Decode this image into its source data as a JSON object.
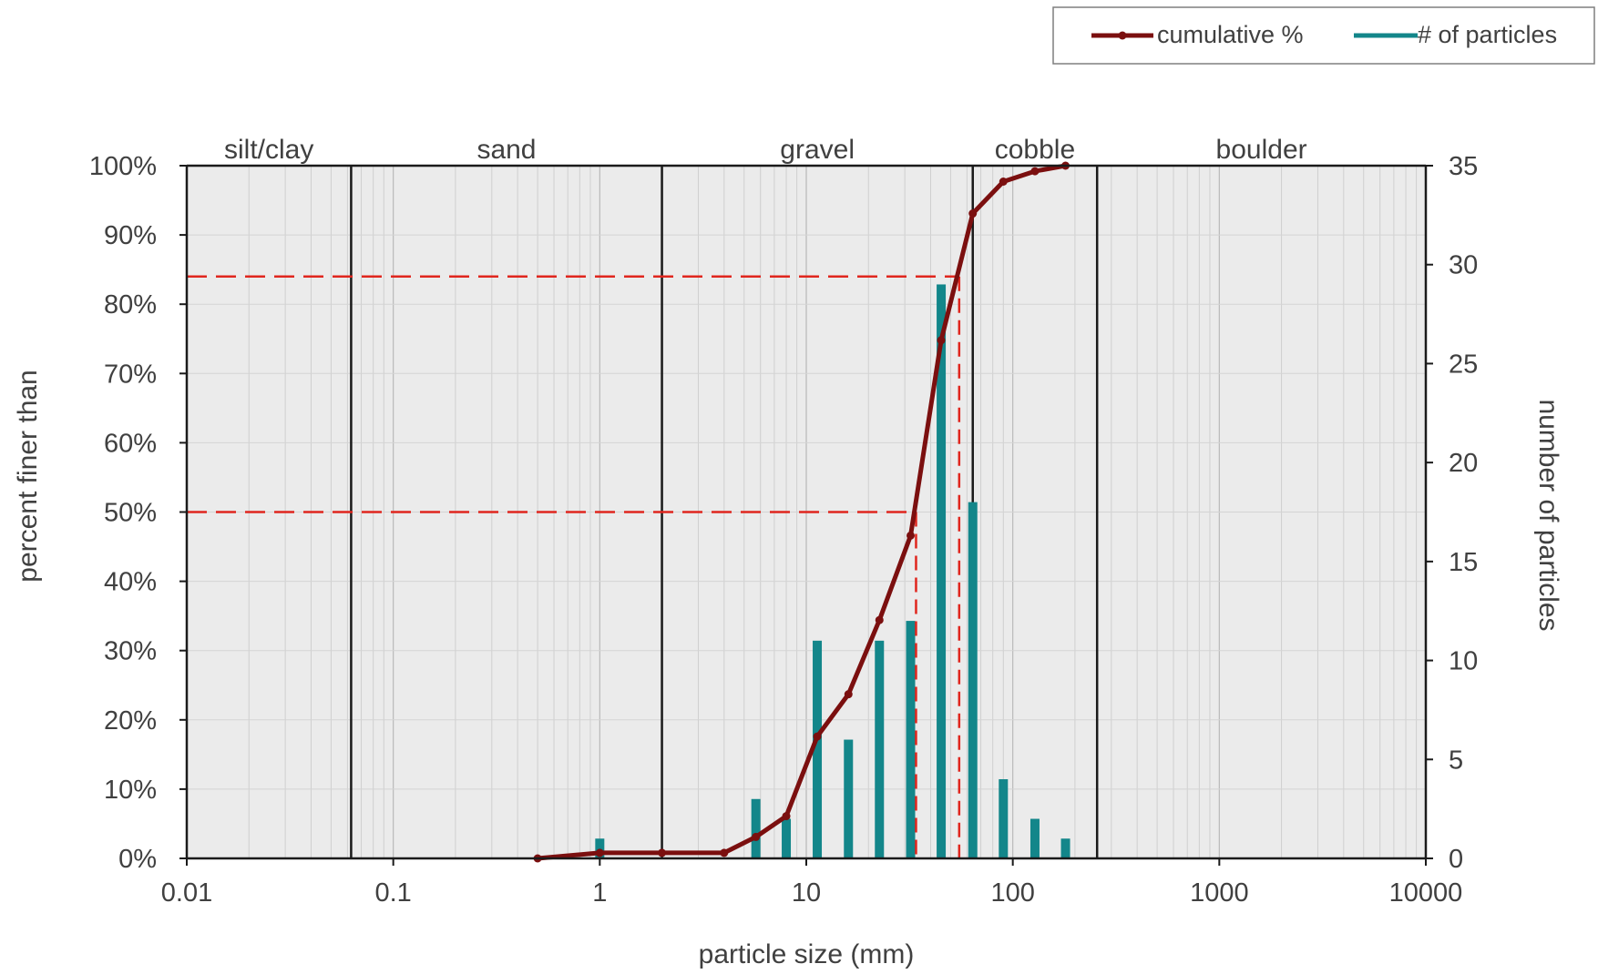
{
  "chart_data": {
    "type": "combo",
    "xlabel": "particle size (mm)",
    "ylabel_left": "percent finer than",
    "ylabel_right": "number of particles",
    "x_scale": "log",
    "xlim": [
      0.01,
      10000
    ],
    "x_ticks": [
      0.01,
      0.1,
      1,
      10,
      100,
      1000,
      10000
    ],
    "x_tick_labels": [
      "0.01",
      "0.1",
      "1",
      "10",
      "100",
      "1000",
      "10000"
    ],
    "ylim_left": [
      0,
      100
    ],
    "y_left_ticks": [
      0,
      10,
      20,
      30,
      40,
      50,
      60,
      70,
      80,
      90,
      100
    ],
    "y_left_tick_labels": [
      "0%",
      "10%",
      "20%",
      "30%",
      "40%",
      "50%",
      "60%",
      "70%",
      "80%",
      "90%",
      "100%"
    ],
    "ylim_right": [
      0,
      35
    ],
    "y_right_ticks": [
      0,
      5,
      10,
      15,
      20,
      25,
      30,
      35
    ],
    "y_right_tick_labels": [
      "0",
      "5",
      "10",
      "15",
      "20",
      "25",
      "30",
      "35"
    ],
    "grid": true,
    "legend_position": "top-right",
    "colors": {
      "cumulative": "#7b0f0f",
      "particles": "#13868a",
      "reference": "#e0261e",
      "background": "#ebebeb"
    },
    "size_classes": [
      {
        "label": "silt/clay",
        "from": 0.01,
        "to": 0.0625
      },
      {
        "label": "sand",
        "from": 0.0625,
        "to": 2
      },
      {
        "label": "gravel",
        "from": 2,
        "to": 64
      },
      {
        "label": "cobble",
        "from": 64,
        "to": 256
      },
      {
        "label": "boulder",
        "from": 256,
        "to": 10000
      }
    ],
    "series": [
      {
        "name": "cumulative %",
        "kind": "line",
        "axis": "left",
        "x": [
          0.5,
          1,
          2,
          4,
          5.7,
          8,
          11.3,
          16,
          22.6,
          32,
          45,
          64,
          90,
          128,
          180
        ],
        "y": [
          0,
          0.8,
          0.8,
          0.8,
          3.1,
          6.1,
          17.6,
          23.7,
          34.4,
          46.6,
          74.8,
          93.1,
          97.7,
          99.2,
          100
        ]
      },
      {
        "name": "# of particles",
        "kind": "bar",
        "axis": "right",
        "x": [
          1,
          5.7,
          8,
          11.3,
          16,
          22.6,
          32,
          45,
          64,
          90,
          128,
          180
        ],
        "values": [
          1,
          3,
          2,
          11,
          6,
          11,
          12,
          29,
          18,
          4,
          2,
          1
        ]
      }
    ],
    "reference_lines": [
      {
        "y": 50,
        "x": 34
      },
      {
        "y": 84,
        "x": 55
      }
    ]
  }
}
